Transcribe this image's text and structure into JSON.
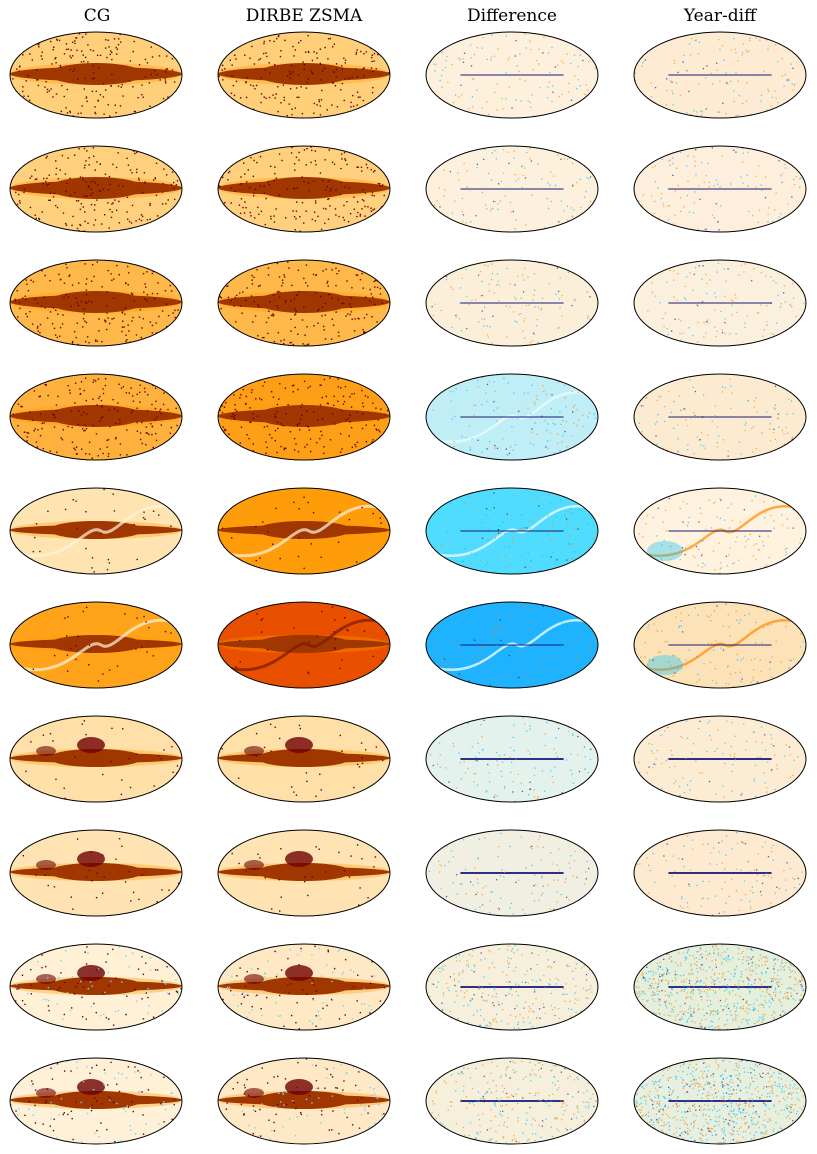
{
  "columns": [
    {
      "title": "CG",
      "kind": "map"
    },
    {
      "title": "DIRBE ZSMA",
      "kind": "map"
    },
    {
      "title": "Difference",
      "kind": "diff"
    },
    {
      "title": "Year-diff",
      "kind": "diff"
    }
  ],
  "row_count": 10,
  "colors": {
    "map_low": "#ffe9c4",
    "map_mid": "#ff9a00",
    "map_high": "#6e0000",
    "diff_neutral": "#fdf0dc",
    "diff_positive": "#ff8c00",
    "diff_negative": "#00c4ff",
    "outline": "#000000"
  }
}
